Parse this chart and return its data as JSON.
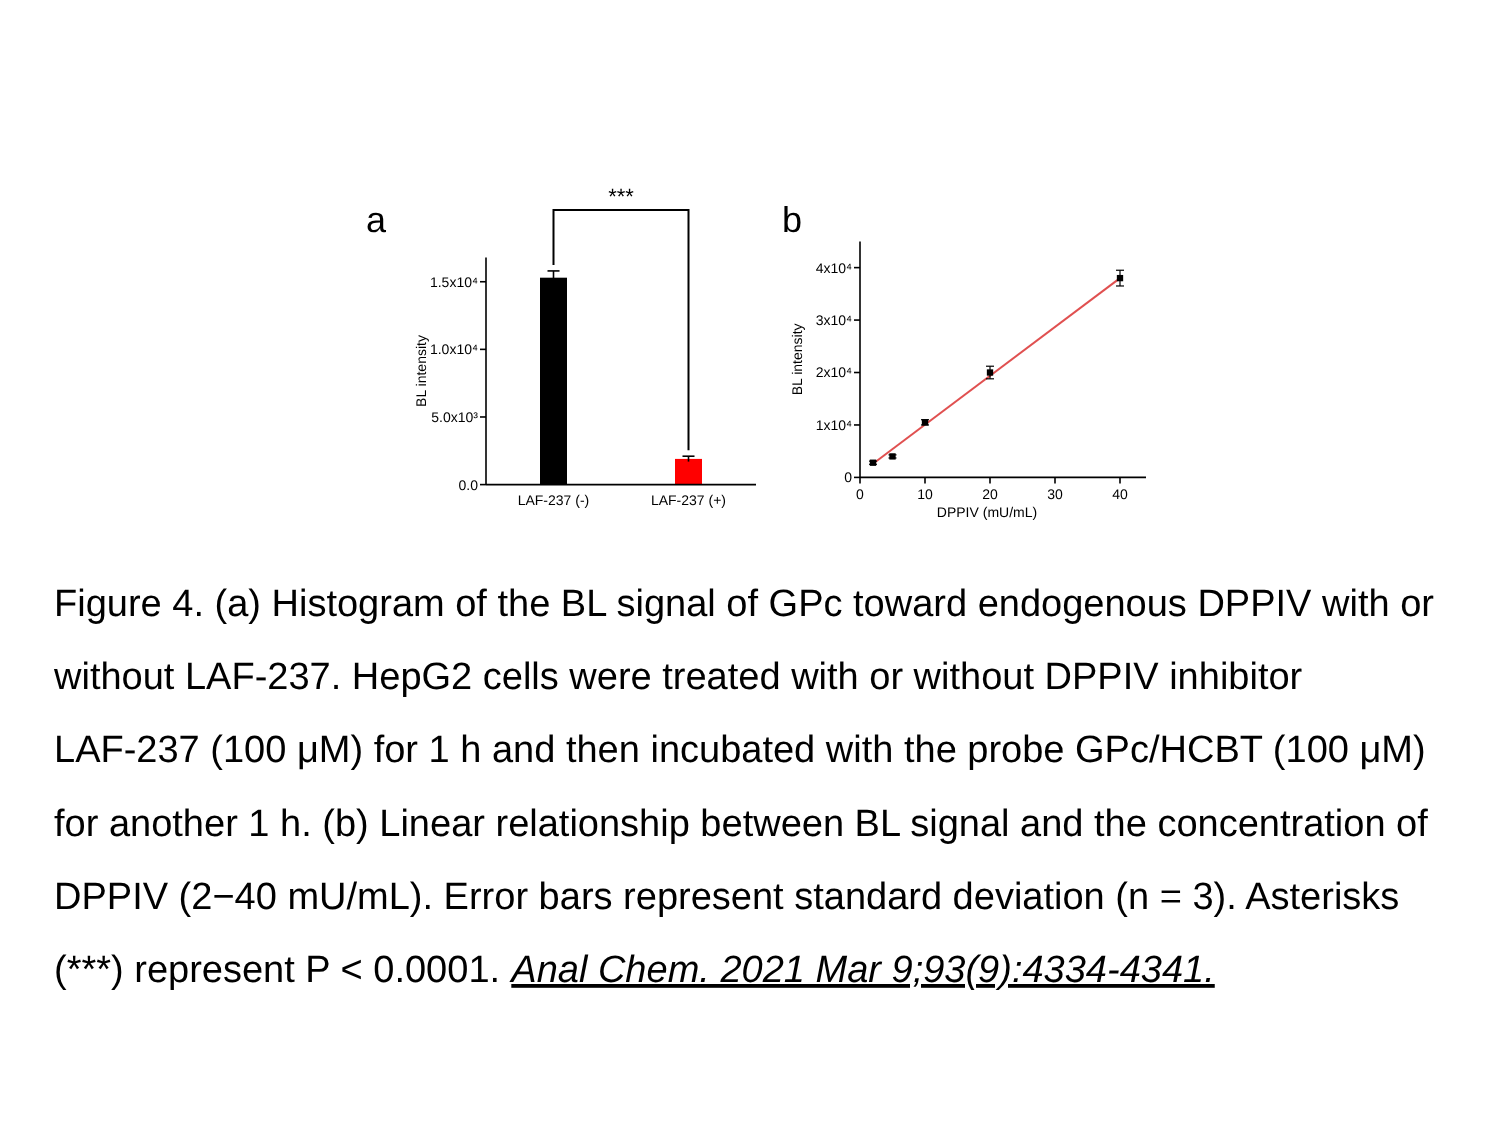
{
  "chart_data": [
    {
      "type": "bar",
      "title": "a",
      "ylabel": "BL intensity",
      "categories": [
        "LAF-237 (-)",
        "LAF-237 (+)"
      ],
      "values": [
        15300,
        1900
      ],
      "colors": [
        "#000000",
        "#ff0000"
      ],
      "errors": [
        500,
        200
      ],
      "ylim": [
        0,
        16800
      ],
      "yticks": [
        {
          "value": 0,
          "label": "0.0"
        },
        {
          "value": 5000,
          "label": "5.0x10³"
        },
        {
          "value": 10000,
          "label": "1.0x10⁴"
        },
        {
          "value": 15000,
          "label": "1.5x10⁴"
        }
      ],
      "annotations": [
        "***"
      ],
      "grid": false
    },
    {
      "type": "scatter",
      "title": "b",
      "xlabel": "DPPIV (mU/mL)",
      "ylabel": "BL intensity",
      "xlim": [
        0,
        44
      ],
      "ylim": [
        0,
        45000
      ],
      "xticks": [
        0,
        10,
        20,
        30,
        40
      ],
      "yticks": [
        0,
        {
          "value": 10000,
          "label": "1x10⁴"
        },
        {
          "value": 20000,
          "label": "2x10⁴"
        },
        {
          "value": 30000,
          "label": "3x10⁴"
        },
        {
          "value": 40000,
          "label": "4x10⁴"
        }
      ],
      "marker": "square",
      "grid": false,
      "series": [
        {
          "type": "scatter",
          "x": [
            2,
            5,
            10,
            20,
            40
          ],
          "values": [
            2800,
            4000,
            10500,
            20000,
            38000
          ],
          "errors": [
            300,
            300,
            500,
            1200,
            1500
          ],
          "color": "#000000"
        },
        {
          "type": "line",
          "x": [
            2,
            40
          ],
          "values": [
            2600,
            38000
          ],
          "color": "#e05050",
          "marker": "none"
        }
      ]
    },
    {
      "type": "other",
      "annotations": [
        "Figure 4. (a) Histogram of the BL signal of GPc toward endogenous DPPIV with or without LAF-237. HepG2 cells were treated with or without DPPIV inhibitor LAF-237 (100 μM) for 1 h and then incubated with the probe GPc/HCBT (100 μM) for another 1 h. (b) Linear relationship between BL signal and the concentration of DPPIV (2−40 mU/mL). Error bars represent standard deviation (n = 3). Asterisks (***) represent P < 0.0001.",
        "Anal Chem. 2021 Mar 9;93(9):4334-4341."
      ]
    }
  ]
}
